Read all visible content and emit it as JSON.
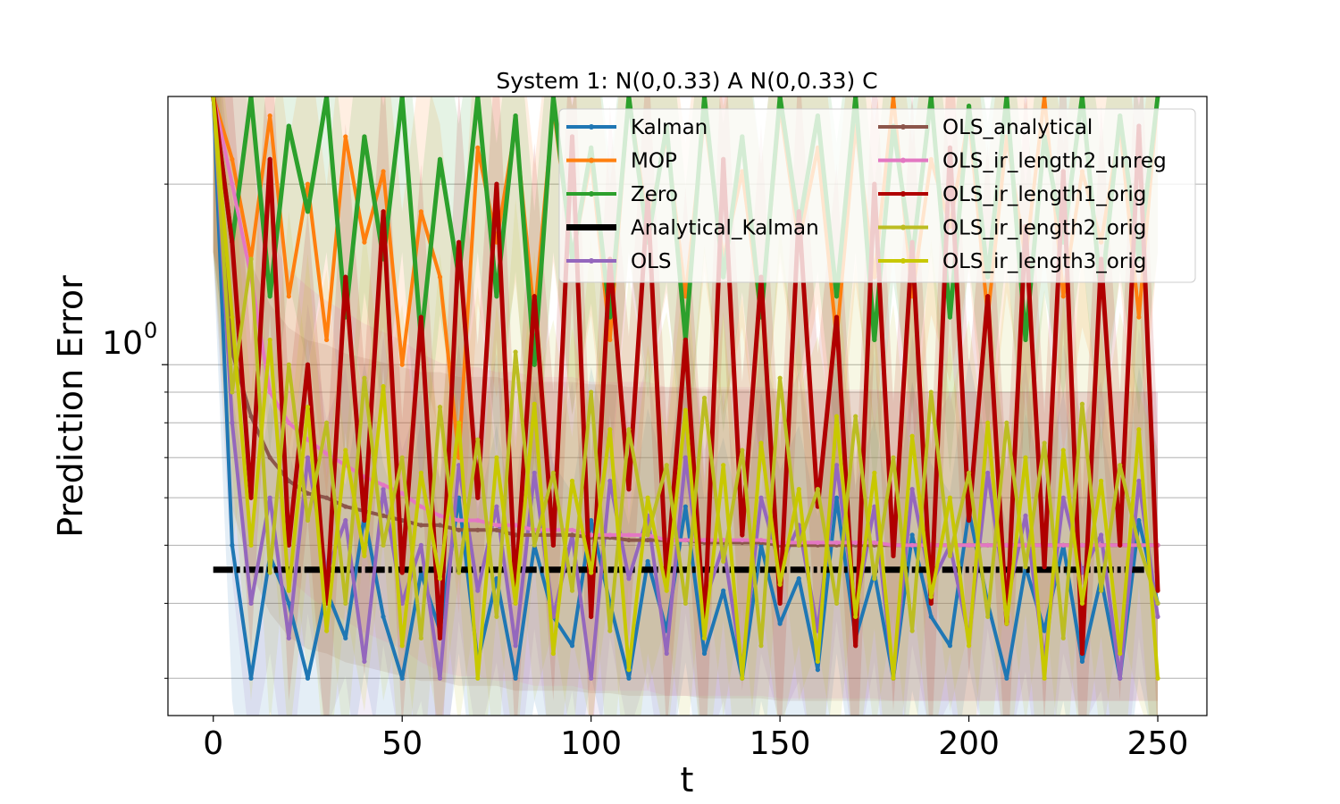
{
  "chart_data": {
    "type": "line",
    "title": "System 1: N(0,0.33) A N(0,0.33) C",
    "xlabel": "t",
    "ylabel": "Prediction Error",
    "xlim": [
      -12,
      263
    ],
    "ylim": [
      0.26,
      2.8
    ],
    "yscale": "log",
    "grid": "y-major-and-minor",
    "legend_position": "top-right",
    "legend_columns": 2,
    "x_ticks": [
      0,
      50,
      100,
      150,
      200,
      250
    ],
    "x_tick_labels": [
      "0",
      "50",
      "100",
      "150",
      "200",
      "250"
    ],
    "y_major_ticks": [
      1.0
    ],
    "y_major_tick_labels": [
      "10"
    ],
    "y_major_tick_exponents": [
      "0"
    ],
    "y_minor_ticks": [
      0.3,
      0.4,
      0.5,
      0.6,
      0.7,
      0.8,
      0.9,
      2.0
    ],
    "x": [
      0,
      5,
      10,
      15,
      20,
      25,
      30,
      35,
      40,
      45,
      50,
      55,
      60,
      65,
      70,
      75,
      80,
      85,
      90,
      95,
      100,
      105,
      110,
      115,
      120,
      125,
      130,
      135,
      140,
      145,
      150,
      155,
      160,
      165,
      170,
      175,
      180,
      185,
      190,
      195,
      200,
      205,
      210,
      215,
      220,
      225,
      230,
      235,
      240,
      245,
      250
    ],
    "series": [
      {
        "name": "Kalman",
        "color": "#1f77b4",
        "width": 4,
        "marker": true,
        "values": [
          2.8,
          0.5,
          0.3,
          0.48,
          0.4,
          0.3,
          0.42,
          0.35,
          0.56,
          0.38,
          0.3,
          0.45,
          0.36,
          0.6,
          0.32,
          0.44,
          0.3,
          0.5,
          0.38,
          0.34,
          0.55,
          0.4,
          0.3,
          0.47,
          0.36,
          0.58,
          0.33,
          0.42,
          0.3,
          0.5,
          0.37,
          0.44,
          0.31,
          0.6,
          0.35,
          0.45,
          0.3,
          0.52,
          0.38,
          0.34,
          0.57,
          0.4,
          0.3,
          0.46,
          0.36,
          0.5,
          0.32,
          0.44,
          0.3,
          0.55,
          0.4
        ]
      },
      {
        "name": "MOP",
        "color": "#ff7f0e",
        "width": 4,
        "marker": true,
        "values": [
          2.8,
          2.2,
          1.5,
          2.6,
          1.3,
          2.0,
          1.1,
          2.4,
          1.6,
          2.1,
          1.0,
          1.8,
          1.4,
          0.7,
          2.3,
          1.6,
          2.5,
          1.2,
          2.7,
          1.5,
          2.2,
          1.1,
          2.8,
          1.7,
          2.4,
          1.3,
          2.6,
          1.5,
          2.1,
          1.2,
          2.7,
          1.6,
          2.3,
          1.1,
          2.5,
          1.4,
          2.8,
          1.3,
          2.2,
          1.7,
          2.6,
          1.2,
          2.4,
          1.5,
          2.8,
          1.3,
          2.1,
          1.6,
          2.5,
          1.2,
          2.8
        ]
      },
      {
        "name": "Zero",
        "color": "#2ca02c",
        "width": 5,
        "marker": true,
        "values": [
          2.8,
          1.6,
          2.8,
          1.3,
          2.5,
          1.8,
          2.8,
          1.2,
          2.4,
          1.5,
          2.8,
          1.1,
          2.2,
          1.4,
          2.8,
          1.3,
          2.6,
          1.0,
          2.8,
          1.5,
          2.3,
          1.2,
          2.8,
          1.6,
          2.5,
          1.1,
          2.8,
          1.4,
          2.4,
          1.2,
          2.8,
          1.7,
          2.6,
          1.3,
          2.8,
          1.1,
          2.5,
          1.5,
          2.8,
          1.2,
          2.7,
          1.4,
          2.8,
          1.1,
          2.4,
          1.6,
          2.8,
          1.3,
          2.6,
          1.5,
          2.8
        ]
      },
      {
        "name": "Analytical_Kalman",
        "color": "#000000",
        "width": 7,
        "marker": false,
        "dashed": true,
        "values": [
          0.455,
          0.455,
          0.455,
          0.455,
          0.455,
          0.455,
          0.455,
          0.455,
          0.455,
          0.455,
          0.455,
          0.455,
          0.455,
          0.455,
          0.455,
          0.455,
          0.455,
          0.455,
          0.455,
          0.455,
          0.455,
          0.455,
          0.455,
          0.455,
          0.455,
          0.455,
          0.455,
          0.455,
          0.455,
          0.455,
          0.455,
          0.455,
          0.455,
          0.455,
          0.455,
          0.455,
          0.455,
          0.455,
          0.455,
          0.455,
          0.455,
          0.455,
          0.455,
          0.455,
          0.455,
          0.455,
          0.455,
          0.455,
          0.455,
          0.455,
          0.455
        ]
      },
      {
        "name": "OLS",
        "color": "#9467bd",
        "width": 4,
        "marker": true,
        "values": [
          2.8,
          0.8,
          0.4,
          0.6,
          0.35,
          0.7,
          0.45,
          0.55,
          0.32,
          0.62,
          0.4,
          0.5,
          0.3,
          0.68,
          0.42,
          0.58,
          0.34,
          0.66,
          0.38,
          0.52,
          0.3,
          0.64,
          0.44,
          0.56,
          0.33,
          0.7,
          0.4,
          0.5,
          0.31,
          0.6,
          0.46,
          0.54,
          0.36,
          0.68,
          0.39,
          0.58,
          0.3,
          0.62,
          0.43,
          0.5,
          0.35,
          0.66,
          0.4,
          0.56,
          0.32,
          0.6,
          0.45,
          0.52,
          0.3,
          0.64,
          0.38
        ]
      },
      {
        "name": "OLS_analytical",
        "color": "#8c564b",
        "width": 4,
        "marker": true,
        "values": [
          2.8,
          1.05,
          0.82,
          0.7,
          0.64,
          0.61,
          0.6,
          0.58,
          0.57,
          0.56,
          0.55,
          0.54,
          0.54,
          0.53,
          0.53,
          0.53,
          0.52,
          0.52,
          0.52,
          0.52,
          0.515,
          0.515,
          0.51,
          0.51,
          0.51,
          0.51,
          0.505,
          0.505,
          0.505,
          0.505,
          0.5,
          0.5,
          0.5,
          0.5,
          0.5,
          0.5,
          0.5,
          0.5,
          0.5,
          0.5,
          0.5,
          0.5,
          0.5,
          0.5,
          0.5,
          0.5,
          0.5,
          0.5,
          0.5,
          0.5,
          0.5
        ]
      },
      {
        "name": "OLS_ir_length2_unreg",
        "color": "#e377c2",
        "width": 4,
        "marker": true,
        "values": [
          2.8,
          2.0,
          1.4,
          0.9,
          0.8,
          0.75,
          0.71,
          0.68,
          0.65,
          0.63,
          0.61,
          0.58,
          0.56,
          0.55,
          0.55,
          0.54,
          0.54,
          0.53,
          0.53,
          0.53,
          0.52,
          0.52,
          0.52,
          0.52,
          0.51,
          0.51,
          0.51,
          0.51,
          0.51,
          0.51,
          0.505,
          0.505,
          0.505,
          0.505,
          0.505,
          0.505,
          0.5,
          0.5,
          0.5,
          0.5,
          0.5,
          0.5,
          0.5,
          0.5,
          0.5,
          0.5,
          0.5,
          0.5,
          0.5,
          0.5,
          0.5
        ]
      },
      {
        "name": "OLS_ir_length1_orig",
        "color": "#b00000",
        "width": 5,
        "marker": true,
        "values": [
          2.8,
          1.6,
          0.6,
          2.2,
          0.5,
          1.0,
          0.4,
          1.4,
          0.55,
          1.8,
          0.45,
          1.2,
          0.35,
          1.6,
          0.6,
          2.0,
          0.42,
          1.3,
          0.5,
          2.4,
          0.38,
          1.5,
          0.62,
          1.9,
          0.44,
          1.1,
          0.36,
          2.2,
          0.52,
          1.4,
          0.4,
          1.8,
          0.58,
          1.2,
          0.34,
          2.0,
          0.48,
          1.6,
          0.4,
          2.3,
          0.55,
          1.3,
          0.37,
          1.7,
          0.46,
          2.1,
          0.33,
          1.5,
          0.5,
          2.5,
          0.42
        ]
      },
      {
        "name": "OLS_ir_length2_orig",
        "color": "#bcbd22",
        "width": 4,
        "marker": true,
        "values": [
          2.8,
          0.9,
          1.5,
          0.45,
          1.0,
          0.55,
          0.8,
          0.4,
          0.95,
          0.5,
          0.7,
          0.35,
          0.85,
          0.45,
          0.75,
          0.38,
          1.05,
          0.5,
          0.66,
          0.42,
          0.9,
          0.36,
          0.78,
          0.52,
          0.68,
          0.4,
          0.88,
          0.47,
          0.72,
          0.34,
          0.95,
          0.5,
          0.62,
          0.4,
          0.82,
          0.44,
          0.7,
          0.36,
          0.9,
          0.48,
          0.66,
          0.38,
          0.8,
          0.46,
          0.74,
          0.35,
          0.86,
          0.42,
          0.68,
          0.5,
          0.4
        ]
      },
      {
        "name": "OLS_ir_length3_orig",
        "color": "#c8c800",
        "width": 4,
        "marker": true,
        "values": [
          2.8,
          1.2,
          0.5,
          1.1,
          0.42,
          0.85,
          0.36,
          0.72,
          0.48,
          0.92,
          0.34,
          0.66,
          0.44,
          0.8,
          0.3,
          0.7,
          0.4,
          0.86,
          0.33,
          0.64,
          0.45,
          0.78,
          0.31,
          0.6,
          0.42,
          0.84,
          0.35,
          0.68,
          0.3,
          0.74,
          0.43,
          0.62,
          0.32,
          0.82,
          0.38,
          0.66,
          0.3,
          0.76,
          0.41,
          0.6,
          0.34,
          0.8,
          0.37,
          0.7,
          0.3,
          0.72,
          0.4,
          0.64,
          0.33,
          0.78,
          0.3
        ]
      }
    ]
  }
}
